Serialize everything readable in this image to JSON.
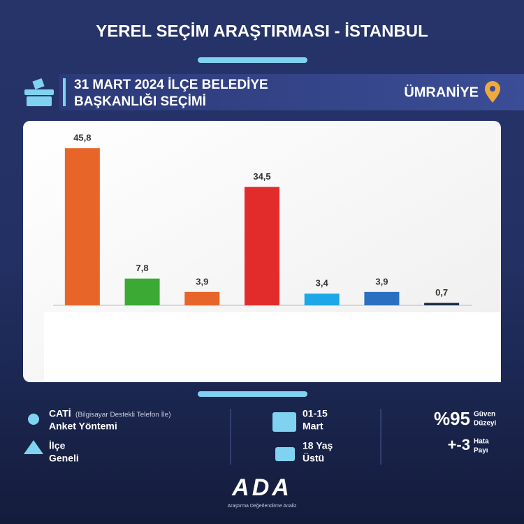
{
  "header": {
    "title": "YEREL SEÇİM ARAŞTIRMASI - İSTANBUL",
    "subtitle_line1": "31 MART 2024 İLÇE BELEDİYE",
    "subtitle_line2": "BAŞKANLIĞI SEÇİMİ",
    "district": "ÜMRANİYE"
  },
  "chart_data": {
    "type": "bar",
    "categories": [
      null,
      null,
      null,
      null,
      null,
      null,
      null
    ],
    "values": [
      45.8,
      7.8,
      3.9,
      34.5,
      3.4,
      3.9,
      0.7
    ],
    "value_labels": [
      "45,8",
      "7,8",
      "3,9",
      "34,5",
      "3,4",
      "3,9",
      "0,7"
    ],
    "colors": [
      "#e8652a",
      "#3aaa35",
      "#e8652a",
      "#e22b2b",
      "#1ea7e8",
      "#2b6fc0",
      "#1b2a4a"
    ]
  },
  "footer": {
    "method_title": "CATİ",
    "method_note": "(Bilgisayar Destekli Telefon İle)",
    "method_label": "Anket Yöntemi",
    "scope_line1": "İlçe",
    "scope_line2": "Geneli",
    "date_line1": "01-15",
    "date_line2": "Mart",
    "age_line1": "18 Yaş",
    "age_line2": "Üstü",
    "confidence": "%95",
    "confidence_label1": "Güven",
    "confidence_label2": "Düzeyi",
    "margin": "+-3",
    "margin_label1": "Hata",
    "margin_label2": "Payı",
    "logo": "ADA",
    "logo_tagline": "Araştırma Değerlendirme Analiz"
  }
}
